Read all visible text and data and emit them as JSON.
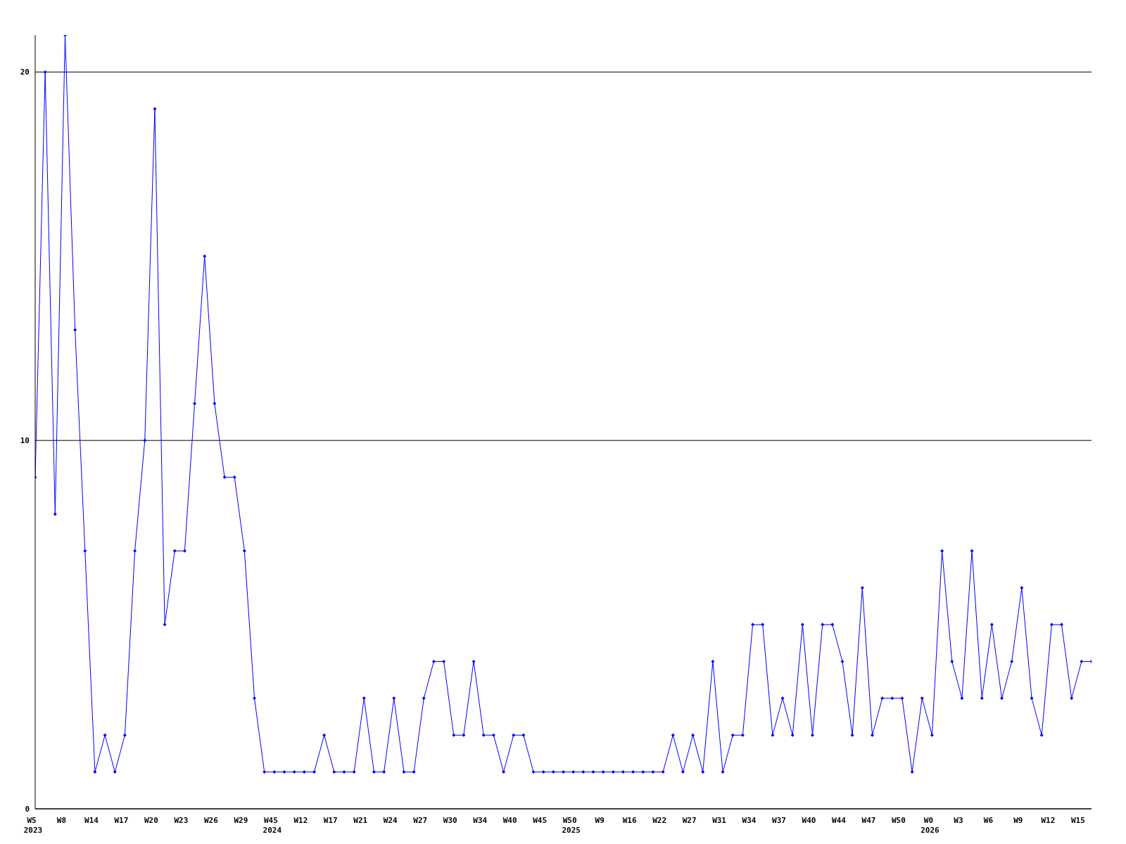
{
  "chart_data": {
    "type": "line",
    "categories": [
      "W5\n2023",
      null,
      null,
      "W8",
      null,
      null,
      "W14",
      null,
      null,
      "W17",
      null,
      null,
      "W20",
      null,
      null,
      "W23",
      null,
      null,
      "W26",
      null,
      null,
      "W29",
      null,
      null,
      "W45\n2024",
      null,
      null,
      "W12",
      null,
      null,
      "W17",
      null,
      null,
      "W21",
      null,
      null,
      "W24",
      null,
      null,
      "W27",
      null,
      null,
      "W30",
      null,
      null,
      "W34",
      null,
      null,
      "W40",
      null,
      null,
      "W45",
      null,
      null,
      "W50\n2025",
      null,
      null,
      "W9",
      null,
      null,
      "W16",
      null,
      null,
      "W22",
      null,
      null,
      "W27",
      null,
      null,
      "W31",
      null,
      null,
      "W34",
      null,
      null,
      "W37",
      null,
      null,
      "W40",
      null,
      null,
      "W44",
      null,
      null,
      "W47",
      null,
      null,
      "W50",
      null,
      null,
      "W0\n2026",
      null,
      null,
      "W3",
      null,
      null,
      "W6",
      null,
      null,
      "W9",
      null,
      null,
      "W12",
      null,
      null,
      "W15",
      null
    ],
    "series": [
      {
        "color": "#0000ff",
        "values": [
          9,
          20,
          8,
          21,
          13,
          7,
          1,
          2,
          1,
          2,
          7,
          10,
          19,
          5,
          7,
          7,
          11,
          15,
          11,
          9,
          9,
          7,
          3,
          1,
          1,
          1,
          1,
          1,
          1,
          2,
          1,
          1,
          1,
          3,
          1,
          1,
          3,
          1,
          1,
          3,
          4,
          4,
          2,
          2,
          4,
          2,
          2,
          1,
          2,
          2,
          1,
          1,
          1,
          1,
          1,
          1,
          1,
          1,
          1,
          1,
          1,
          1,
          1,
          1,
          2,
          1,
          2,
          1,
          4,
          1,
          2,
          2,
          5,
          5,
          2,
          3,
          2,
          5,
          2,
          5,
          5,
          4,
          2,
          6,
          2,
          3,
          3,
          3,
          1,
          3,
          2,
          7,
          4,
          3,
          7,
          3,
          5,
          3,
          4,
          6,
          3,
          2,
          5,
          5,
          3,
          4,
          4
        ]
      }
    ],
    "ylim": [
      0,
      21
    ],
    "yticks": [
      0,
      10,
      20
    ],
    "grid": "y",
    "marker": "diamond",
    "line_style": "solid"
  }
}
